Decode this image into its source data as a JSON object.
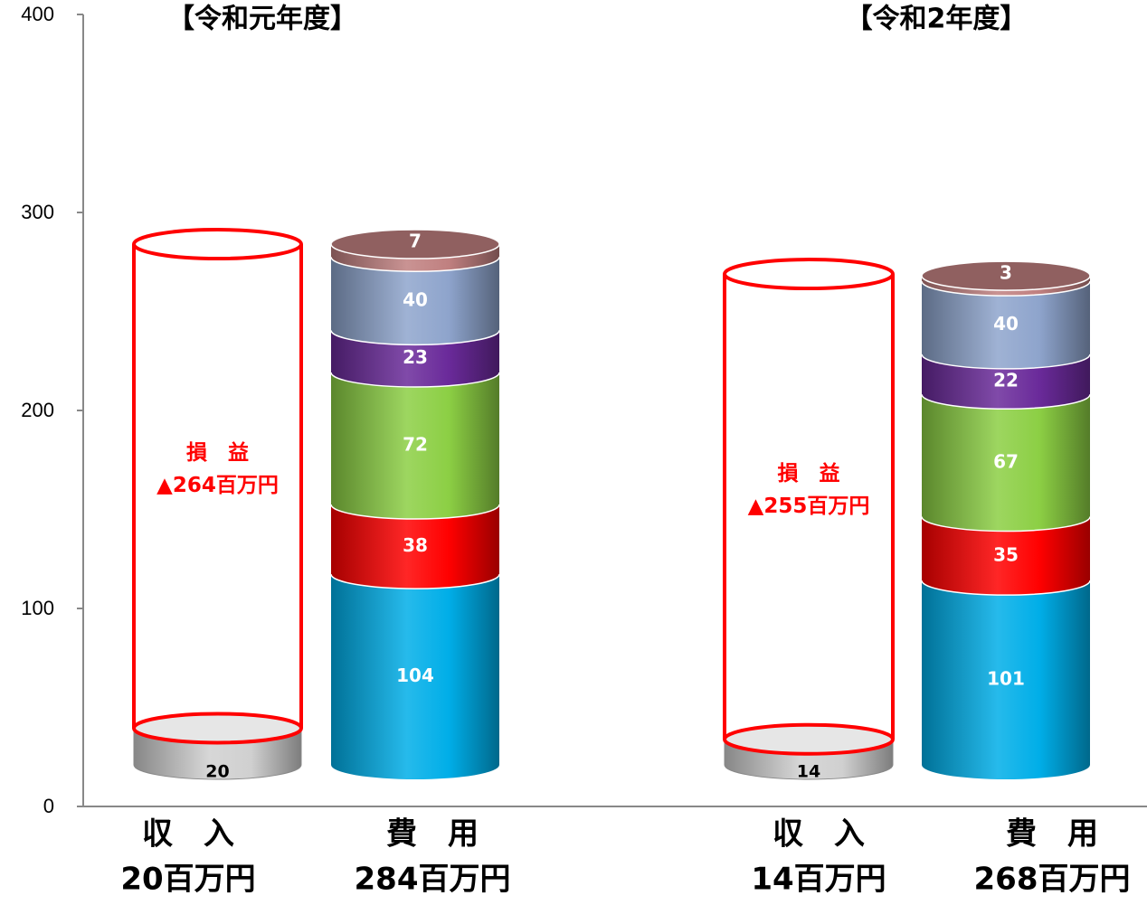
{
  "chart_data": {
    "type": "bar",
    "ylim": [
      0,
      400
    ],
    "yticks": [
      "0",
      "100",
      "200",
      "300",
      "400"
    ],
    "grid": false,
    "groups": [
      {
        "title": "【令和元年度】",
        "income": {
          "label_line1": "収　入",
          "label_line2": "20百万円",
          "value": 20,
          "value_label": "20",
          "loss_line1": "損　益",
          "loss_line2": "▲264百万円",
          "total": 284
        },
        "expense": {
          "label_line1": "費　用",
          "label_line2": "284百万円",
          "segments": [
            {
              "value": 104,
              "label": "104",
              "color": "#00aee8"
            },
            {
              "value": 38,
              "label": "38",
              "color": "#ff0000"
            },
            {
              "value": 72,
              "label": "72",
              "color": "#8ccf44"
            },
            {
              "value": 23,
              "label": "23",
              "color": "#6a2a9a"
            },
            {
              "value": 40,
              "label": "40",
              "color": "#8ea4cc"
            },
            {
              "value": 7,
              "label": "7",
              "color": "#c08080"
            }
          ]
        }
      },
      {
        "title": "【令和2年度】",
        "income": {
          "label_line1": "収　入",
          "label_line2": "14百万円",
          "value": 14,
          "value_label": "14",
          "loss_line1": "損　益",
          "loss_line2": "▲255百万円",
          "total": 269
        },
        "expense": {
          "label_line1": "費　用",
          "label_line2": "268百万円",
          "segments": [
            {
              "value": 101,
              "label": "101",
              "color": "#00aee8"
            },
            {
              "value": 35,
              "label": "35",
              "color": "#ff0000"
            },
            {
              "value": 67,
              "label": "67",
              "color": "#8ccf44"
            },
            {
              "value": 22,
              "label": "22",
              "color": "#6a2a9a"
            },
            {
              "value": 40,
              "label": "40",
              "color": "#8ea4cc"
            },
            {
              "value": 3,
              "label": "3",
              "color": "#c08080"
            }
          ]
        }
      }
    ]
  }
}
